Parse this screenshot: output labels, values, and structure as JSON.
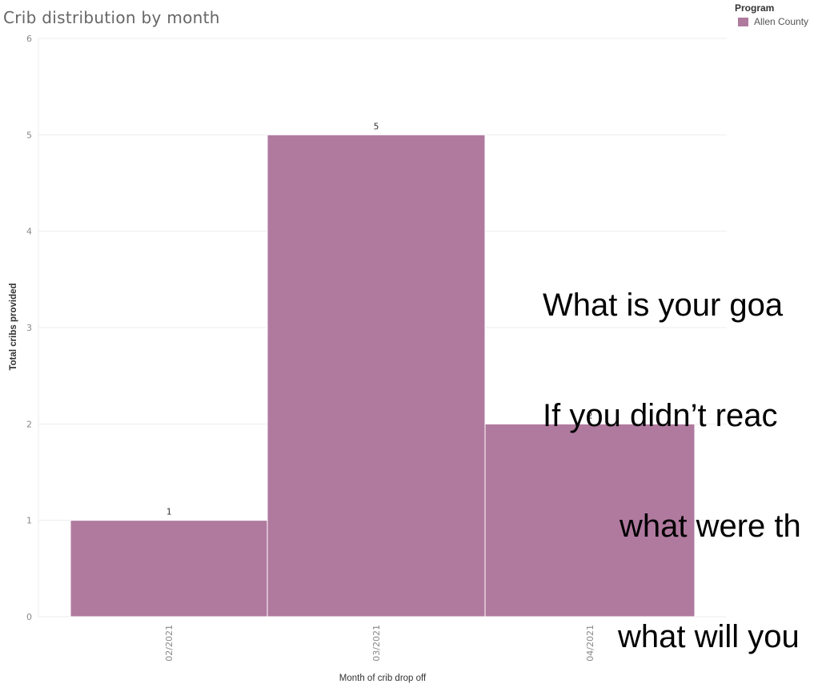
{
  "chart_data": {
    "type": "bar",
    "title": "Crib distribution by month",
    "xlabel": "Month of crib drop off",
    "ylabel": "Total cribs provided",
    "categories": [
      "02/2021",
      "03/2021",
      "04/2021"
    ],
    "series": [
      {
        "name": "Allen County",
        "values": [
          1,
          5,
          2
        ]
      }
    ],
    "data_labels": [
      "1",
      "5",
      "2"
    ],
    "y_ticks": [
      "0",
      "1",
      "2",
      "3",
      "4",
      "5",
      "6"
    ],
    "ylim": [
      0,
      6
    ],
    "grid": true,
    "legend": {
      "title": "Program",
      "position": "top-right"
    },
    "colors": {
      "bar": "#b07a9f",
      "grid": "#ededed",
      "axis_text": "#888888"
    }
  },
  "overlay_text": {
    "line1": "What is your goa",
    "line2": "If you didn’t reac",
    "line3": "what were th",
    "line4": "what will you"
  }
}
